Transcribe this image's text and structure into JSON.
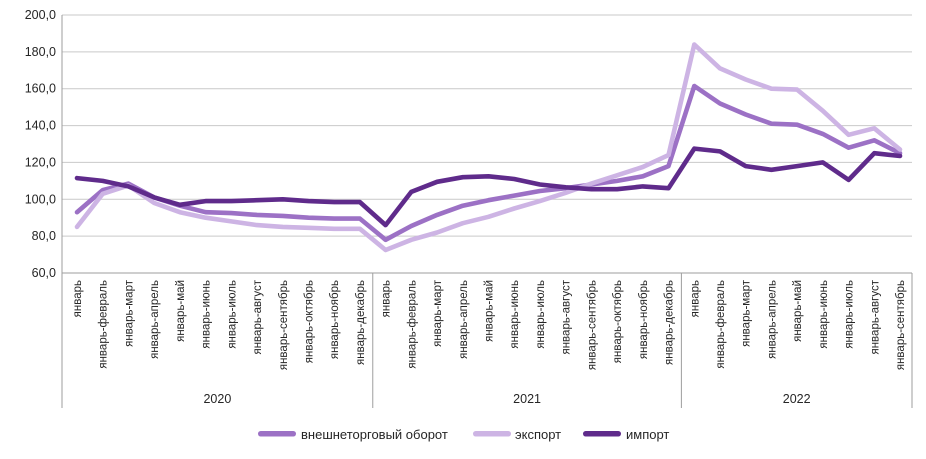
{
  "chart_data": {
    "type": "line",
    "title": "",
    "xlabel": "",
    "ylabel": "",
    "grid": true,
    "legend_position": "bottom",
    "categories": [
      "январь",
      "январь-февраль",
      "январь-март",
      "январь-апрель",
      "январь-май",
      "январь-июнь",
      "январь-июль",
      "январь-август",
      "январь-сентябрь",
      "январь-октябрь",
      "январь-ноябрь",
      "январь-декабрь",
      "январь",
      "январь-февраль",
      "январь-март",
      "январь-апрель",
      "январь-май",
      "январь-июнь",
      "январь-июль",
      "январь-август",
      "январь-сентябрь",
      "январь-октябрь",
      "январь-ноябрь",
      "январь-декабрь",
      "январь",
      "январь-февраль",
      "январь-март",
      "январь-апрель",
      "январь-май",
      "январь-июнь",
      "январь-июль",
      "январь-август",
      "январь-сентябрь"
    ],
    "category_groups": [
      {
        "label": "2020",
        "count": 12
      },
      {
        "label": "2021",
        "count": 12
      },
      {
        "label": "2022",
        "count": 9
      }
    ],
    "y_axis": {
      "min": 60,
      "max": 200,
      "ticks": [
        {
          "value": 200,
          "label": "200,0"
        },
        {
          "value": 180,
          "label": "180,0"
        },
        {
          "value": 160,
          "label": "160,0"
        },
        {
          "value": 140,
          "label": "140,0"
        },
        {
          "value": 120,
          "label": "120,0"
        },
        {
          "value": 100,
          "label": "100,0"
        },
        {
          "value": 80,
          "label": "80,0"
        },
        {
          "value": 60,
          "label": "60,0"
        }
      ]
    },
    "series": [
      {
        "name": "внешнеторговый оборот",
        "color": "#9c71c5",
        "values": [
          93,
          105,
          108.5,
          101,
          96.5,
          93,
          92.5,
          91.5,
          91,
          90,
          89.5,
          89.5,
          78,
          85.5,
          91.5,
          96.5,
          99.5,
          102,
          104.5,
          106,
          108,
          110,
          112.5,
          118,
          161.5,
          152,
          146,
          141,
          140.5,
          135.5,
          128,
          132,
          125
        ]
      },
      {
        "name": "экспорт",
        "color": "#cdb4e4",
        "values": [
          85,
          103,
          107.5,
          98,
          93,
          90,
          88,
          86,
          85,
          84.5,
          84,
          84,
          72.5,
          78,
          82,
          87,
          90.5,
          95,
          99,
          103.5,
          108.5,
          113,
          117.5,
          124,
          184,
          171,
          165,
          160,
          159.5,
          148,
          135,
          138.5,
          127
        ]
      },
      {
        "name": "импорт",
        "color": "#5f2b8b",
        "values": [
          111.5,
          110,
          107,
          101,
          97,
          99,
          99,
          99.5,
          100,
          99,
          98.5,
          98.5,
          86,
          104,
          109.5,
          112,
          112.5,
          111,
          108,
          106.5,
          105.5,
          105.5,
          107,
          106,
          127.5,
          126,
          118,
          116,
          118,
          120,
          110.5,
          125,
          123.5
        ]
      }
    ]
  },
  "style": {
    "grid_color": "#c9c9c9",
    "axis_color": "#9e9e9e",
    "text_color": "#262626",
    "background": "#ffffff"
  }
}
